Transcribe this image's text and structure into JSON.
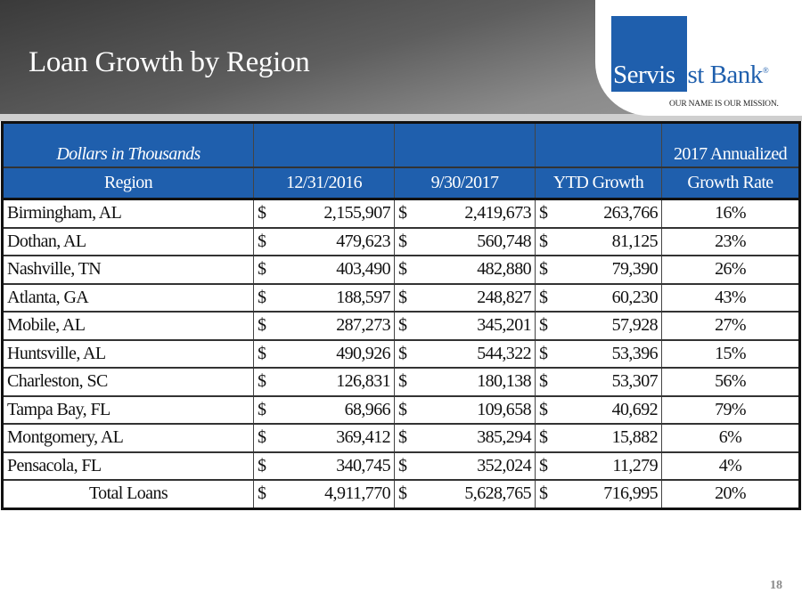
{
  "title": "Loan Growth by Region",
  "logo": {
    "part1": "Servis",
    "part2": "1st Bank",
    "mark": "®",
    "tagline": "OUR NAME IS OUR MISSION."
  },
  "table": {
    "note": "Dollars in Thousands",
    "headers": {
      "region": "Region",
      "c1": "12/31/2016",
      "c2": "9/30/2017",
      "c3": "YTD Growth",
      "c4a": "2017 Annualized",
      "c4b": "Growth Rate"
    },
    "currency": "$",
    "rows": [
      {
        "region": "Birmingham, AL",
        "c1": "2,155,907",
        "c2": "2,419,673",
        "c3": "263,766",
        "c4": "16%"
      },
      {
        "region": "Dothan, AL",
        "c1": "479,623",
        "c2": "560,748",
        "c3": "81,125",
        "c4": "23%"
      },
      {
        "region": "Nashville, TN",
        "c1": "403,490",
        "c2": "482,880",
        "c3": "79,390",
        "c4": "26%"
      },
      {
        "region": "Atlanta, GA",
        "c1": "188,597",
        "c2": "248,827",
        "c3": "60,230",
        "c4": "43%"
      },
      {
        "region": "Mobile, AL",
        "c1": "287,273",
        "c2": "345,201",
        "c3": "57,928",
        "c4": "27%"
      },
      {
        "region": "Huntsville, AL",
        "c1": "490,926",
        "c2": "544,322",
        "c3": "53,396",
        "c4": "15%"
      },
      {
        "region": "Charleston, SC",
        "c1": "126,831",
        "c2": "180,138",
        "c3": "53,307",
        "c4": "56%"
      },
      {
        "region": "Tampa Bay, FL",
        "c1": "68,966",
        "c2": "109,658",
        "c3": "40,692",
        "c4": "79%"
      },
      {
        "region": "Montgomery, AL",
        "c1": "369,412",
        "c2": "385,294",
        "c3": "15,882",
        "c4": "6%"
      },
      {
        "region": "Pensacola, FL",
        "c1": "340,745",
        "c2": "352,024",
        "c3": "11,279",
        "c4": "4%"
      }
    ],
    "total": {
      "region": "Total Loans",
      "c1": "4,911,770",
      "c2": "5,628,765",
      "c3": "716,995",
      "c4": "20%"
    }
  },
  "page_number": "18"
}
